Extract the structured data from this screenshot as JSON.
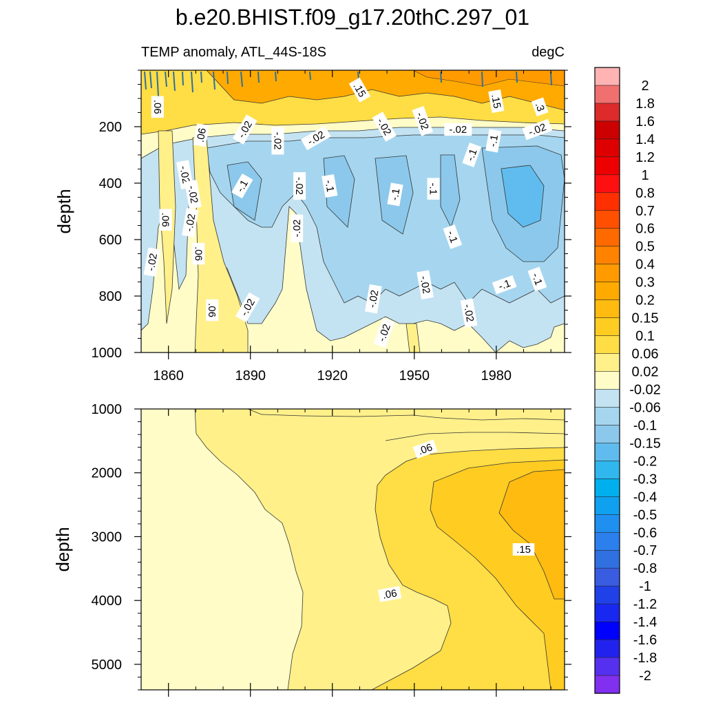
{
  "chart_data": {
    "type": "heatmap",
    "title": "b.e20.BHIST.f09_g17.20thC.297_01",
    "subtitle_left": "TEMP anomaly, ATL_44S-18S",
    "subtitle_right": "degC",
    "ylabel": "depth",
    "x_ticks": [
      "1860",
      "1890",
      "1920",
      "1950",
      "1980"
    ],
    "x_tick_values": [
      1860,
      1890,
      1920,
      1950,
      1980
    ],
    "xlim": [
      1850,
      2005
    ],
    "panels": [
      {
        "name": "upper",
        "ylim": [
          0,
          1000
        ],
        "y_ticks": [
          "200",
          "400",
          "600",
          "800",
          "1000"
        ],
        "y_tick_values": [
          200,
          400,
          600,
          800,
          1000
        ],
        "contour_labels": [
          {
            "text": ".06",
            "x": 1856,
            "y": 130,
            "rot": 90
          },
          {
            "text": ".15",
            "x": 1930,
            "y": 70,
            "rot": 60
          },
          {
            "text": ".15",
            "x": 1980,
            "y": 110,
            "rot": 80
          },
          {
            "text": ".3",
            "x": 1996,
            "y": 130,
            "rot": 70
          },
          {
            "text": ".06",
            "x": 1872,
            "y": 230,
            "rot": -80
          },
          {
            "text": "-.02",
            "x": 1888,
            "y": 210,
            "rot": -60
          },
          {
            "text": "-.02",
            "x": 1900,
            "y": 250,
            "rot": 90
          },
          {
            "text": "-.02",
            "x": 1914,
            "y": 240,
            "rot": -30
          },
          {
            "text": "-.02",
            "x": 1939,
            "y": 200,
            "rot": 60
          },
          {
            "text": "-.02",
            "x": 1953,
            "y": 180,
            "rot": 70
          },
          {
            "text": "-.02",
            "x": 1966,
            "y": 210,
            "rot": 0
          },
          {
            "text": "-.02",
            "x": 1995,
            "y": 210,
            "rot": -20
          },
          {
            "text": "-.02",
            "x": 1866,
            "y": 370,
            "rot": 80
          },
          {
            "text": "-.1",
            "x": 1887,
            "y": 410,
            "rot": -60
          },
          {
            "text": "-.02",
            "x": 1908,
            "y": 410,
            "rot": 90
          },
          {
            "text": "-.1",
            "x": 1919,
            "y": 410,
            "rot": 80
          },
          {
            "text": "-.1",
            "x": 1943,
            "y": 440,
            "rot": -80
          },
          {
            "text": "-.1",
            "x": 1957,
            "y": 420,
            "rot": 90
          },
          {
            "text": "-.1",
            "x": 1971,
            "y": 300,
            "rot": -70
          },
          {
            "text": "-.1",
            "x": 1979,
            "y": 250,
            "rot": -80
          },
          {
            "text": "-.02",
            "x": 1869,
            "y": 440,
            "rot": 80
          },
          {
            "text": ".06",
            "x": 1859,
            "y": 530,
            "rot": 90
          },
          {
            "text": "-.02",
            "x": 1868,
            "y": 540,
            "rot": -80
          },
          {
            "text": "-.02",
            "x": 1907,
            "y": 560,
            "rot": -90
          },
          {
            "text": "-.1",
            "x": 1964,
            "y": 590,
            "rot": 70
          },
          {
            "text": ".06",
            "x": 1871,
            "y": 650,
            "rot": 90
          },
          {
            "text": "-.02",
            "x": 1854,
            "y": 680,
            "rot": -80
          },
          {
            "text": "-.1",
            "x": 1983,
            "y": 760,
            "rot": -20
          },
          {
            "text": "-.1",
            "x": 1995,
            "y": 740,
            "rot": 70
          },
          {
            "text": "-.02",
            "x": 1954,
            "y": 760,
            "rot": 80
          },
          {
            "text": "-.02",
            "x": 1935,
            "y": 810,
            "rot": -80
          },
          {
            "text": "-.02",
            "x": 1889,
            "y": 840,
            "rot": -60
          },
          {
            "text": ".06",
            "x": 1876,
            "y": 850,
            "rot": 90
          },
          {
            "text": "-.02",
            "x": 1970,
            "y": 860,
            "rot": 80
          },
          {
            "text": "-.02",
            "x": 1939,
            "y": 930,
            "rot": -70
          }
        ]
      },
      {
        "name": "lower",
        "ylim": [
          1000,
          5400
        ],
        "y_ticks": [
          "1000",
          "2000",
          "3000",
          "4000",
          "5000"
        ],
        "y_tick_values": [
          1000,
          2000,
          3000,
          4000,
          5000
        ],
        "contour_labels": [
          {
            "text": ".06",
            "x": 1954,
            "y": 1630,
            "rot": -20
          },
          {
            "text": ".15",
            "x": 1990,
            "y": 3200,
            "rot": 0
          },
          {
            "text": ".06",
            "x": 1941,
            "y": 3900,
            "rot": -10
          }
        ]
      }
    ],
    "colorbar": {
      "labels": [
        "2",
        "1.8",
        "1.6",
        "1.4",
        "1.2",
        "1",
        "0.8",
        "0.7",
        "0.6",
        "0.5",
        "0.4",
        "0.3",
        "0.2",
        "0.15",
        "0.1",
        "0.06",
        "0.02",
        "-0.02",
        "-0.06",
        "-0.1",
        "-0.15",
        "-0.2",
        "-0.3",
        "-0.4",
        "-0.5",
        "-0.6",
        "-0.7",
        "-0.8",
        "-1",
        "-1.2",
        "-1.4",
        "-1.6",
        "-1.8",
        "-2"
      ],
      "colors": [
        "#ffb3b3",
        "#f07070",
        "#dd2a2a",
        "#cc0000",
        "#de0000",
        "#ee0000",
        "#ff1010",
        "#ff3000",
        "#ff5000",
        "#ff6a00",
        "#ff8200",
        "#ff9a00",
        "#ffaa00",
        "#ffbb10",
        "#ffcc22",
        "#ffdd44",
        "#fff08a",
        "#fffcc8",
        "#c3e3f2",
        "#a6d6ef",
        "#8cc8eb",
        "#60bcee",
        "#30b8ee",
        "#00b0ee",
        "#10a0f0",
        "#2090f0",
        "#2c80ee",
        "#3070e0",
        "#3a5ce0",
        "#2040e8",
        "#1828f0",
        "#0000ff",
        "#2222ee",
        "#5530ee",
        "#8030ee"
      ]
    }
  }
}
